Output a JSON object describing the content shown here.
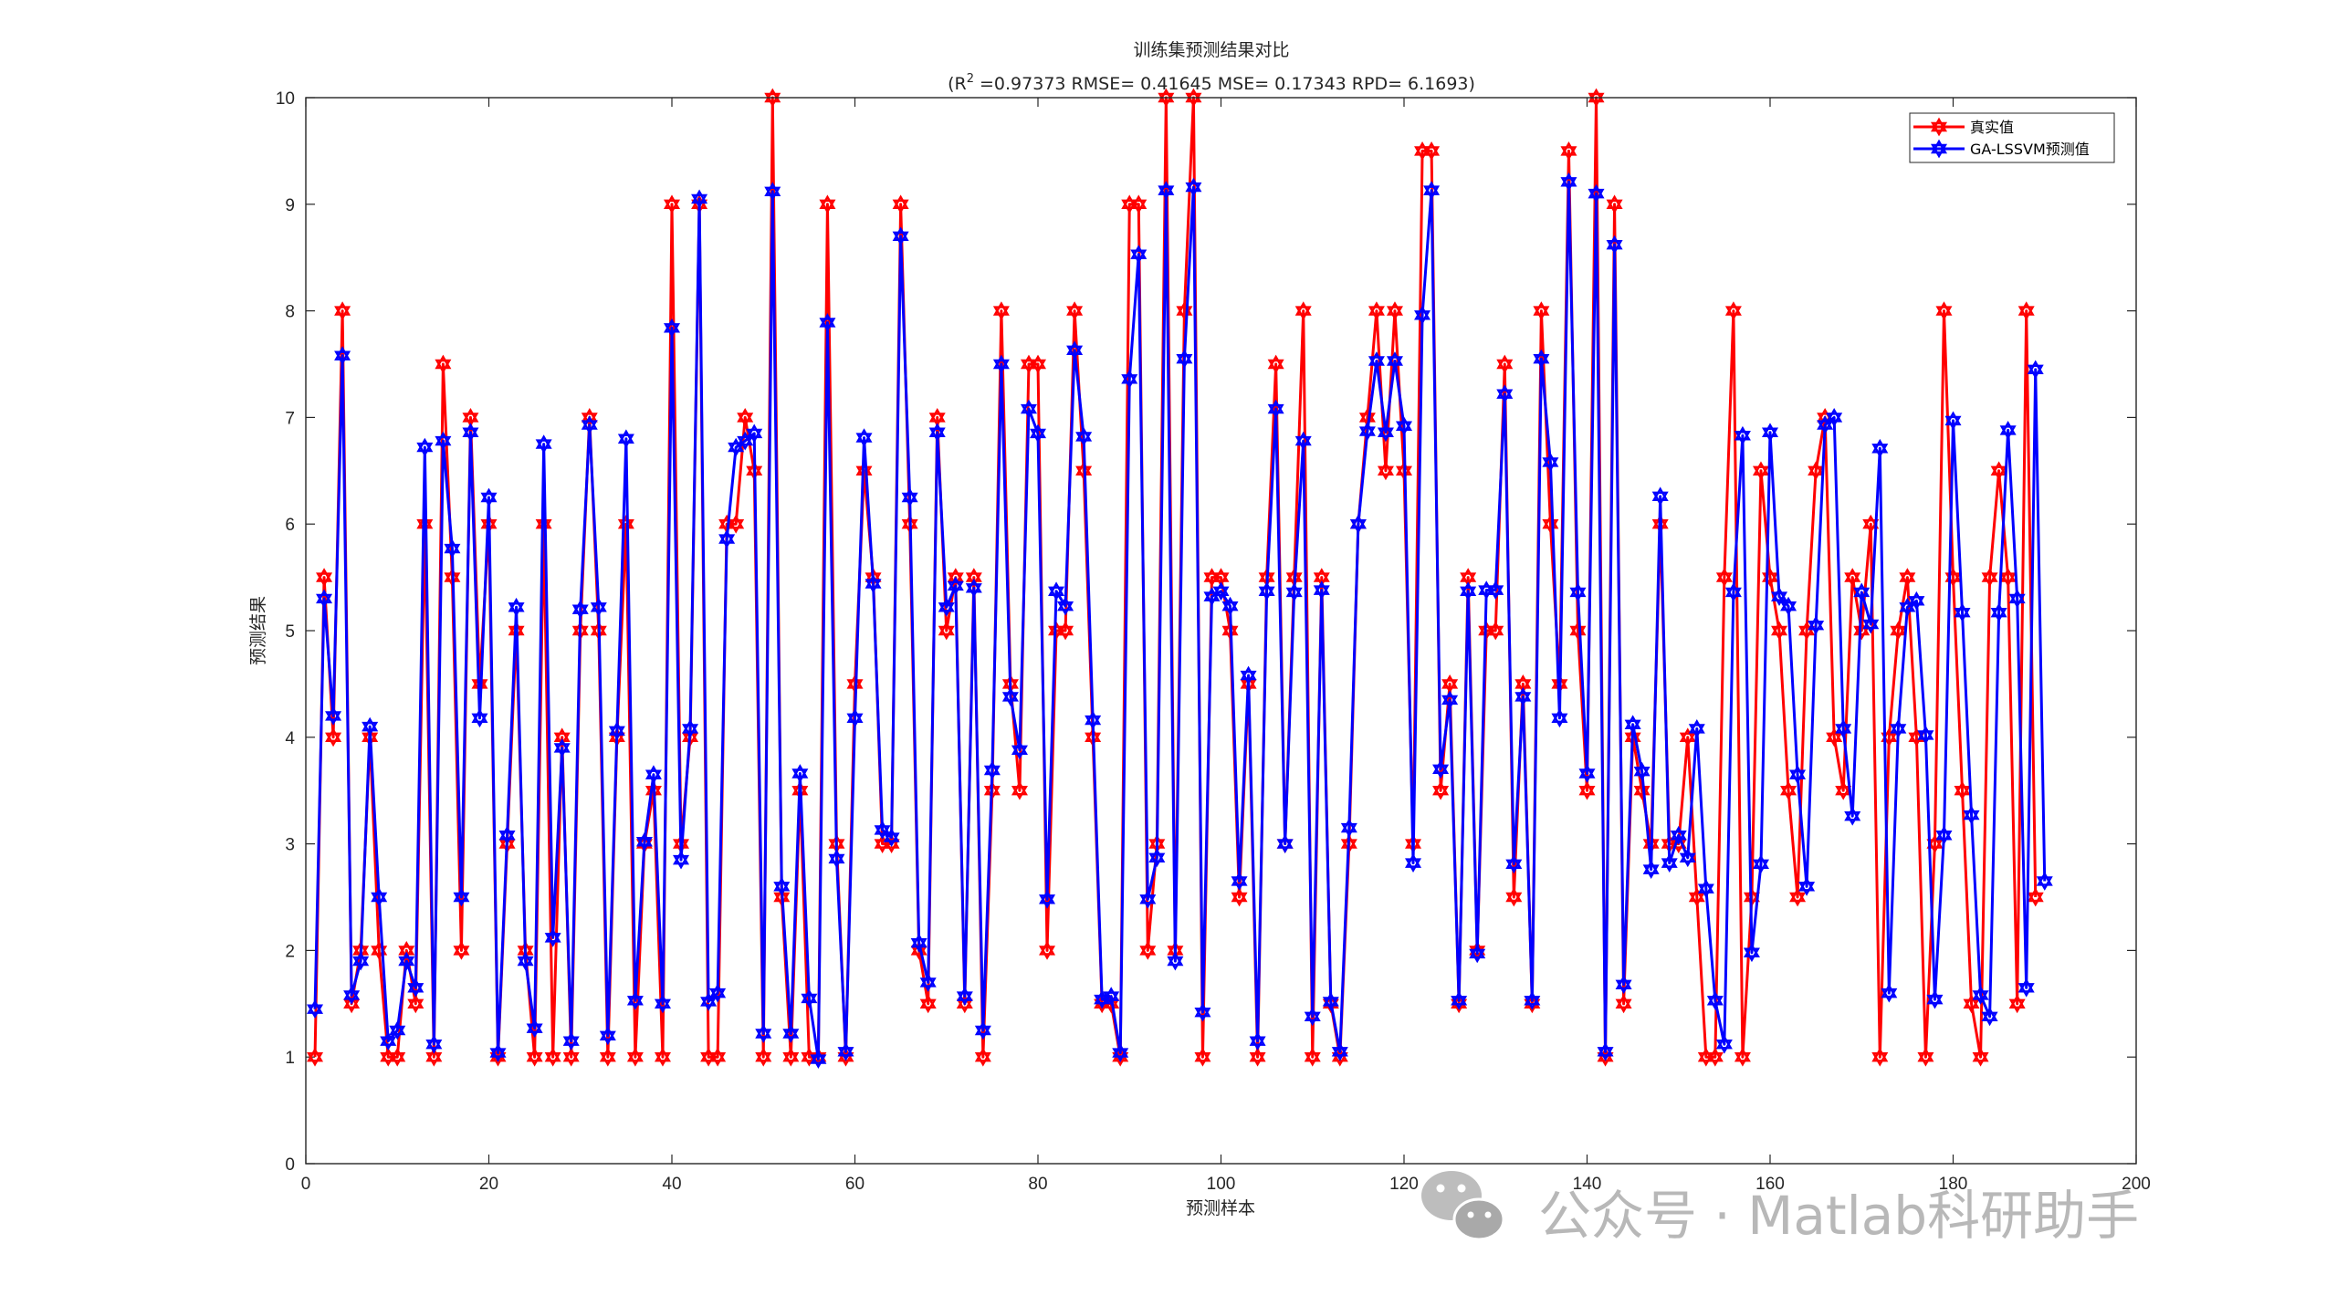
{
  "chart_data": {
    "type": "line",
    "title": "训练集预测结果对比",
    "subtitle_parts": {
      "open": "(R",
      "sup": "2",
      "rest": " =0.97373 RMSE= 0.41645 MSE= 0.17343 RPD= 6.1693)"
    },
    "xlabel": "预测样本",
    "ylabel": "预测结果",
    "xlim": [
      0,
      200
    ],
    "ylim": [
      0,
      10
    ],
    "xticks": [
      0,
      20,
      40,
      60,
      80,
      100,
      120,
      140,
      160,
      180,
      200
    ],
    "yticks": [
      0,
      1,
      2,
      3,
      4,
      5,
      6,
      7,
      8,
      9,
      10
    ],
    "legend_position": "top-right",
    "series": [
      {
        "name": "真实值",
        "color": "#ff0000",
        "marker": "hexagram",
        "values": [
          1,
          5.5,
          4,
          8,
          1.5,
          2,
          4,
          2,
          1,
          1,
          2,
          1.5,
          6,
          1,
          7.5,
          5.5,
          2,
          7,
          4.5,
          6,
          1,
          3,
          5,
          2,
          1,
          6,
          1,
          4,
          1,
          5,
          7,
          5,
          1,
          4,
          6,
          1,
          3,
          3.5,
          1,
          9,
          3,
          4,
          9,
          1,
          1,
          6,
          6,
          7,
          6.5,
          1,
          10,
          2.5,
          1,
          3.5,
          1,
          1,
          9,
          3,
          1,
          4.5,
          6.5,
          5.5,
          3,
          3,
          9,
          6,
          2,
          1.5,
          7,
          5,
          5.5,
          1.5,
          5.5,
          1,
          3.5,
          8,
          4.5,
          3.5,
          7.5,
          7.5,
          2,
          5,
          5,
          8,
          6.5,
          4,
          1.5,
          1.5,
          1,
          9,
          9,
          2,
          3,
          10,
          2,
          8,
          10,
          1,
          5.5,
          5.5,
          5,
          2.5,
          4.5,
          1,
          5.5,
          7.5,
          3,
          5.5,
          8,
          1,
          5.5,
          1.5,
          1,
          3,
          6,
          7,
          8,
          6.5,
          8,
          6.5,
          3,
          9.5,
          9.5,
          3.5,
          4.5,
          1.5,
          5.5,
          2,
          5,
          5,
          7.5,
          2.5,
          4.5,
          1.5,
          8,
          6,
          4.5,
          9.5,
          5,
          3.5,
          10,
          1,
          9,
          1.5,
          4,
          3.5,
          3,
          6,
          3,
          3,
          4,
          2.5,
          1,
          1,
          5.5,
          8,
          1,
          2.5,
          6.5,
          5.5,
          5,
          3.5,
          2.5,
          5,
          6.5,
          7,
          4,
          3.5,
          5.5,
          5,
          6,
          1,
          4,
          5,
          5.5,
          4,
          1,
          3,
          8,
          5.5,
          3.5,
          1.5,
          1,
          5.5,
          6.5,
          5.5,
          1.5,
          8,
          2.5
        ]
      },
      {
        "name": "GA-LSSVM预测值",
        "color": "#0000ff",
        "marker": "hexagram",
        "values": [
          1.45,
          5.3,
          4.2,
          7.58,
          1.58,
          1.9,
          4.1,
          2.5,
          1.15,
          1.25,
          1.9,
          1.65,
          6.72,
          1.12,
          6.78,
          5.77,
          2.5,
          6.86,
          4.18,
          6.25,
          1.04,
          3.08,
          5.22,
          1.9,
          1.27,
          6.75,
          2.12,
          3.9,
          1.15,
          5.2,
          6.93,
          5.22,
          1.2,
          4.06,
          6.8,
          1.53,
          3.02,
          3.65,
          1.5,
          7.84,
          2.85,
          4.08,
          9.05,
          1.52,
          1.6,
          5.86,
          6.72,
          6.78,
          6.85,
          1.22,
          9.12,
          2.6,
          1.22,
          3.66,
          1.55,
          0.98,
          7.89,
          2.86,
          1.05,
          4.18,
          6.81,
          5.44,
          3.13,
          3.06,
          8.7,
          6.25,
          2.07,
          1.7,
          6.86,
          5.22,
          5.42,
          1.57,
          5.4,
          1.25,
          3.69,
          7.5,
          4.38,
          3.88,
          7.08,
          6.85,
          2.48,
          5.37,
          5.23,
          7.63,
          6.82,
          4.16,
          1.54,
          1.57,
          1.04,
          7.36,
          8.53,
          2.48,
          2.87,
          9.13,
          1.9,
          7.55,
          9.16,
          1.42,
          5.32,
          5.37,
          5.23,
          2.65,
          4.58,
          1.15,
          5.37,
          7.08,
          3.0,
          5.36,
          6.78,
          1.38,
          5.38,
          1.52,
          1.05,
          3.15,
          6.0,
          6.87,
          7.53,
          6.86,
          7.53,
          6.92,
          2.82,
          7.96,
          9.13,
          3.7,
          4.35,
          1.53,
          5.37,
          1.97,
          5.38,
          5.38,
          7.22,
          2.81,
          4.38,
          1.53,
          7.55,
          6.58,
          4.18,
          9.21,
          5.36,
          3.66,
          9.1,
          1.05,
          8.62,
          1.68,
          4.12,
          3.68,
          2.76,
          6.26,
          2.82,
          3.08,
          2.87,
          4.08,
          2.58,
          1.53,
          1.12,
          5.36,
          6.83,
          1.98,
          2.81,
          6.86,
          5.32,
          5.23,
          3.65,
          2.6,
          5.05,
          6.93,
          7.0,
          4.08,
          3.26,
          5.36,
          5.06,
          6.71,
          1.6,
          4.08,
          5.22,
          5.28,
          4.02,
          1.54,
          3.08,
          6.97,
          5.17,
          3.27,
          1.58,
          1.38,
          5.17,
          6.88,
          5.3,
          1.65,
          7.45,
          2.65
        ]
      }
    ]
  },
  "watermark": {
    "text": "公众号 · Matlab科研助手",
    "icon": "wechat-icon"
  }
}
